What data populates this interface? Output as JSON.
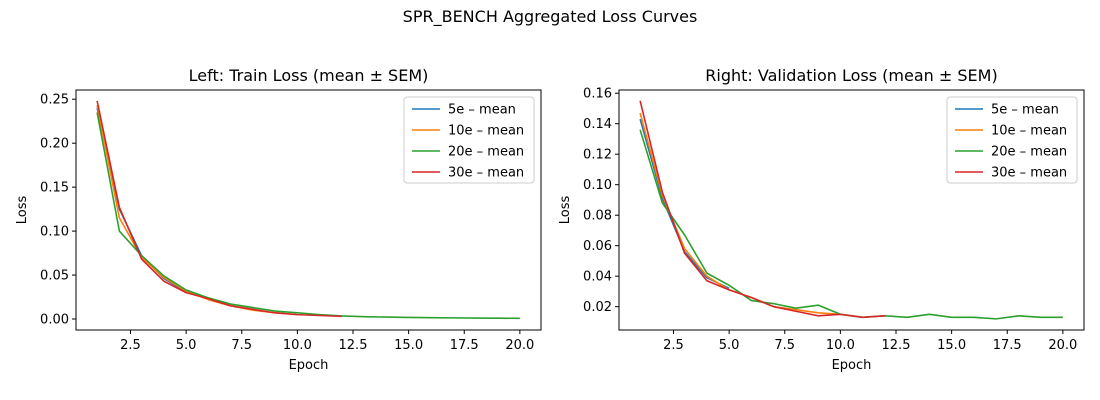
{
  "figure": {
    "suptitle": "SPR_BENCH Aggregated Loss Curves"
  },
  "chart_data": [
    {
      "type": "line",
      "title": "Left: Train Loss (mean ± SEM)",
      "xlabel": "Epoch",
      "ylabel": "Loss",
      "xlim": [
        0.05,
        20.95
      ],
      "ylim": [
        -0.0125,
        0.2605
      ],
      "xticks": [
        2.5,
        5.0,
        7.5,
        10.0,
        12.5,
        15.0,
        17.5,
        20.0
      ],
      "xtick_labels": [
        "2.5",
        "5.0",
        "7.5",
        "10.0",
        "12.5",
        "15.0",
        "17.5",
        "20.0"
      ],
      "yticks": [
        0.0,
        0.05,
        0.1,
        0.15,
        0.2,
        0.25
      ],
      "ytick_labels": [
        "0.00",
        "0.05",
        "0.10",
        "0.15",
        "0.20",
        "0.25"
      ],
      "legend": "top-right",
      "grid": false,
      "series": [
        {
          "name": "5e – mean",
          "color": "#1f77b4",
          "x": [
            1,
            2,
            3,
            4,
            5
          ],
          "y": [
            0.24,
            0.125,
            0.072,
            0.046,
            0.031
          ]
        },
        {
          "name": "10e – mean",
          "color": "#ff7f0e",
          "x": [
            1,
            2,
            3,
            4,
            5,
            6,
            7,
            8,
            9,
            10
          ],
          "y": [
            0.243,
            0.115,
            0.07,
            0.047,
            0.032,
            0.022,
            0.015,
            0.01,
            0.007,
            0.005
          ]
        },
        {
          "name": "20e – mean",
          "color": "#2ca02c",
          "x": [
            1,
            2,
            3,
            4,
            5,
            6,
            7,
            8,
            9,
            10,
            11,
            12,
            13,
            14,
            15,
            16,
            17,
            18,
            19,
            20
          ],
          "y": [
            0.235,
            0.1,
            0.072,
            0.049,
            0.033,
            0.024,
            0.017,
            0.013,
            0.009,
            0.007,
            0.005,
            0.0035,
            0.0027,
            0.0022,
            0.0018,
            0.0015,
            0.0013,
            0.0011,
            0.0009,
            0.0008
          ]
        },
        {
          "name": "30e – mean",
          "color": "#d62728",
          "x": [
            1,
            2,
            3,
            4,
            5,
            6,
            7,
            8,
            9,
            10,
            11,
            12
          ],
          "y": [
            0.248,
            0.127,
            0.068,
            0.043,
            0.03,
            0.023,
            0.015,
            0.011,
            0.007,
            0.005,
            0.004,
            0.003
          ]
        }
      ]
    },
    {
      "type": "line",
      "title": "Right: Validation Loss (mean ± SEM)",
      "xlabel": "Epoch",
      "ylabel": "Loss",
      "xlim": [
        0.05,
        20.95
      ],
      "ylim": [
        0.0047,
        0.1621
      ],
      "xticks": [
        2.5,
        5.0,
        7.5,
        10.0,
        12.5,
        15.0,
        17.5,
        20.0
      ],
      "xtick_labels": [
        "2.5",
        "5.0",
        "7.5",
        "10.0",
        "12.5",
        "15.0",
        "17.5",
        "20.0"
      ],
      "yticks": [
        0.02,
        0.04,
        0.06,
        0.08,
        0.1,
        0.12,
        0.14,
        0.16
      ],
      "ytick_labels": [
        "0.02",
        "0.04",
        "0.06",
        "0.08",
        "0.10",
        "0.12",
        "0.14",
        "0.16"
      ],
      "legend": "top-right",
      "grid": false,
      "series": [
        {
          "name": "5e – mean",
          "color": "#1f77b4",
          "x": [
            1,
            2,
            3,
            4,
            5
          ],
          "y": [
            0.143,
            0.091,
            0.056,
            0.039,
            0.032
          ]
        },
        {
          "name": "10e – mean",
          "color": "#ff7f0e",
          "x": [
            1,
            2,
            3,
            4,
            5,
            6,
            7,
            8,
            9,
            10
          ],
          "y": [
            0.147,
            0.093,
            0.058,
            0.04,
            0.031,
            0.026,
            0.02,
            0.018,
            0.016,
            0.015
          ]
        },
        {
          "name": "20e – mean",
          "color": "#2ca02c",
          "x": [
            1,
            2,
            3,
            4,
            5,
            6,
            7,
            8,
            9,
            10,
            11,
            12,
            13,
            14,
            15,
            16,
            17,
            18,
            19,
            20
          ],
          "y": [
            0.136,
            0.088,
            0.067,
            0.042,
            0.034,
            0.024,
            0.022,
            0.019,
            0.021,
            0.015,
            0.013,
            0.014,
            0.013,
            0.015,
            0.013,
            0.013,
            0.012,
            0.014,
            0.013,
            0.013
          ]
        },
        {
          "name": "30e – mean",
          "color": "#d62728",
          "x": [
            1,
            2,
            3,
            4,
            5,
            6,
            7,
            8,
            9,
            10,
            11,
            12
          ],
          "y": [
            0.155,
            0.095,
            0.055,
            0.037,
            0.031,
            0.026,
            0.02,
            0.017,
            0.014,
            0.015,
            0.013,
            0.014
          ]
        }
      ]
    }
  ]
}
